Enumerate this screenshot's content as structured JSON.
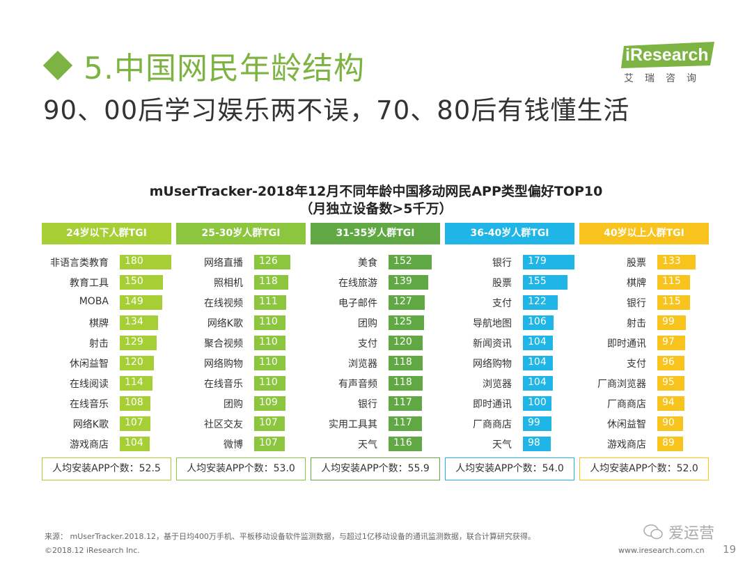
{
  "slide": {
    "title": "5.中国网民年龄结构",
    "subtitle": "90、00后学习娱乐两不误，70、80后有钱懂生活"
  },
  "logo": {
    "text": "iResearch",
    "cn": "艾瑞咨询",
    "color": "#7cb342"
  },
  "chart_data": {
    "type": "bar",
    "title": "mUserTracker-2018年12月不同年龄中国移动网民APP类型偏好TOP10",
    "subtitle": "（月独立设备数>5千万）",
    "max_value": 180,
    "groups": [
      {
        "name": "24岁以下人群TGI",
        "color": "#a6cf36",
        "categories": [
          "非语言类教育",
          "教育工具",
          "MOBA",
          "棋牌",
          "射击",
          "休闲益智",
          "在线阅读",
          "在线音乐",
          "网络K歌",
          "游戏商店"
        ],
        "values": [
          180,
          150,
          149,
          134,
          129,
          120,
          114,
          108,
          107,
          104
        ],
        "footer": "人均安装APP个数：52.5"
      },
      {
        "name": "25-30岁人群TGI",
        "color": "#8cc63e",
        "categories": [
          "网络直播",
          "照相机",
          "在线视频",
          "网络K歌",
          "聚合视频",
          "网络购物",
          "在线音乐",
          "团购",
          "社区交友",
          "微博"
        ],
        "values": [
          126,
          118,
          111,
          110,
          110,
          110,
          110,
          109,
          107,
          107
        ],
        "footer": "人均安装APP个数：53.0"
      },
      {
        "name": "31-35岁人群TGI",
        "color": "#5fa843",
        "categories": [
          "美食",
          "在线旅游",
          "电子邮件",
          "团购",
          "支付",
          "浏览器",
          "有声音频",
          "银行",
          "实用工具其",
          "天气"
        ],
        "values": [
          152,
          139,
          127,
          125,
          120,
          118,
          118,
          117,
          117,
          116
        ],
        "footer": "人均安装APP个数：55.9"
      },
      {
        "name": "36-40岁人群TGI",
        "color": "#1fb5e6",
        "categories": [
          "银行",
          "股票",
          "支付",
          "导航地图",
          "新闻资讯",
          "网络购物",
          "浏览器",
          "即时通讯",
          "厂商商店",
          "天气"
        ],
        "values": [
          179,
          155,
          122,
          106,
          104,
          104,
          104,
          100,
          99,
          98
        ],
        "footer": "人均安装APP个数：54.0"
      },
      {
        "name": "40岁以上人群TGI",
        "color": "#f7c31c",
        "categories": [
          "股票",
          "棋牌",
          "银行",
          "射击",
          "即时通讯",
          "支付",
          "厂商浏览器",
          "厂商商店",
          "休闲益智",
          "游戏商店"
        ],
        "values": [
          133,
          115,
          115,
          99,
          97,
          96,
          95,
          94,
          90,
          89
        ],
        "footer": "人均安装APP个数：52.0"
      }
    ]
  },
  "footer": {
    "source": "来源： mUserTracker.2018.12，基于日均400万手机、平板移动设备软件监测数据，与超过1亿移动设备的通讯监测数据，联合计算研究获得。",
    "copyright": "©2018.12 iResearch Inc.",
    "site": "www.iresearch.com.cn",
    "page": "19",
    "watermark": "爱运营"
  }
}
